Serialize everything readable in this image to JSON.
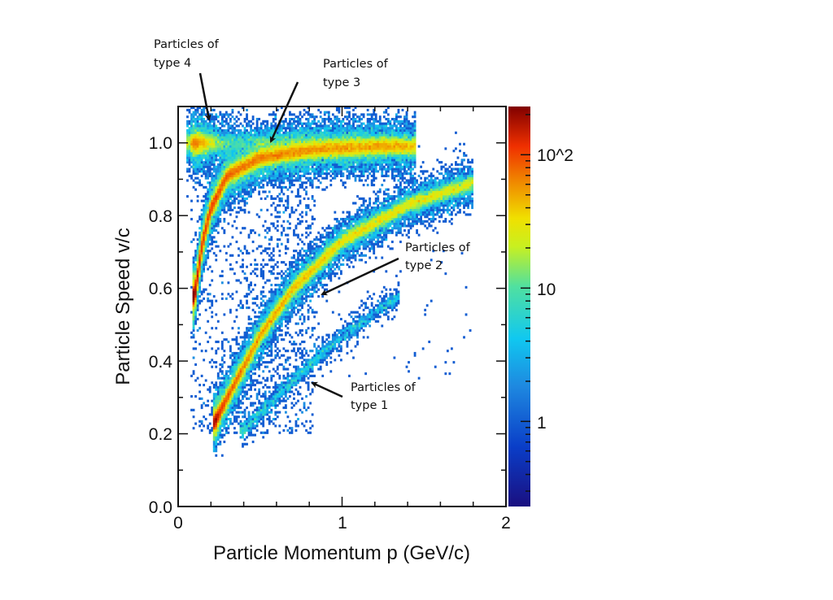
{
  "chart_data": {
    "type": "heatmap",
    "subtype": "2d-histogram",
    "title": "",
    "xlabel": "Particle Momentum p (GeV/c)",
    "ylabel": "Particle Speed v/c",
    "xlim": [
      0,
      2
    ],
    "ylim": [
      0,
      1.1
    ],
    "x_ticks": [
      "0",
      "1",
      "2"
    ],
    "y_ticks": [
      "0.0",
      "0.2",
      "0.4",
      "0.6",
      "0.8",
      "1.0"
    ],
    "colorbar": {
      "scale": "log",
      "range": [
        0.23,
        230
      ],
      "tick_values": [
        1,
        10,
        100
      ],
      "tick_labels": [
        "1",
        "10",
        "10^2"
      ],
      "colormap": "rainbow (dark blue to dark red)"
    },
    "grid": false,
    "series": [
      {
        "name": "Particles of type 4",
        "p": [
          0.05,
          0.15,
          0.4,
          0.8,
          1.2,
          1.4
        ],
        "v": [
          1.0,
          1.0,
          1.0,
          1.0,
          1.0,
          1.0
        ],
        "peak_count": 60
      },
      {
        "name": "Particles of type 3",
        "p": [
          0.1,
          0.15,
          0.2,
          0.3,
          0.5,
          0.8,
          1.2
        ],
        "v": [
          0.58,
          0.73,
          0.82,
          0.91,
          0.96,
          0.98,
          0.99
        ],
        "peak_count": 200
      },
      {
        "name": "Particles of type 2",
        "p": [
          0.22,
          0.3,
          0.5,
          0.7,
          1.0,
          1.4,
          1.8
        ],
        "v": [
          0.23,
          0.3,
          0.47,
          0.6,
          0.73,
          0.83,
          0.89
        ],
        "peak_count": 200
      },
      {
        "name": "Particles of type 1",
        "p": [
          0.4,
          0.5,
          0.8,
          1.0,
          1.35
        ],
        "v": [
          0.21,
          0.26,
          0.39,
          0.47,
          0.58
        ],
        "peak_count": 15
      }
    ],
    "annotations": [
      {
        "line1": "Particles of",
        "line2": "type 4"
      },
      {
        "line1": "Particles of",
        "line2": "type 3"
      },
      {
        "line1": "Particles of",
        "line2": "type 2"
      },
      {
        "line1": "Particles of",
        "line2": "type 1"
      }
    ]
  }
}
